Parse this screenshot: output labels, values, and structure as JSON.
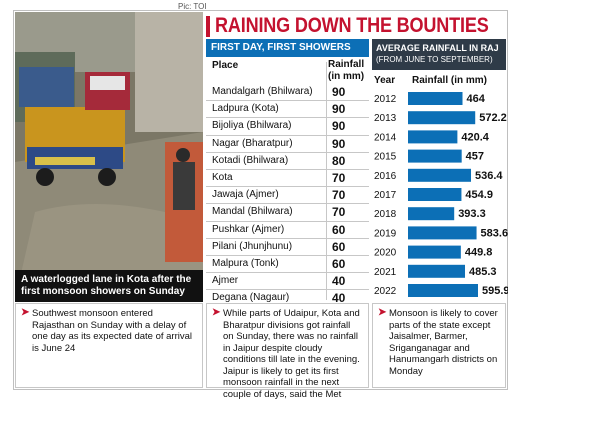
{
  "photo_credit": "Pic: TOI",
  "headline": "RAINING DOWN THE BOUNTIES",
  "photo_caption": "A waterlogged lane in Kota after the first monsoon showers on Sunday",
  "table": {
    "title": "FIRST DAY, FIRST SHOWERS",
    "col_place": "Place",
    "col_rain_1": "Rainfall",
    "col_rain_2": "(in mm)",
    "rows": [
      {
        "place": "Mandalgarh (Bhilwara)",
        "value": "90"
      },
      {
        "place": "Ladpura (Kota)",
        "value": "90"
      },
      {
        "place": "Bijoliya (Bhilwara)",
        "value": "90"
      },
      {
        "place": "Nagar (Bharatpur)",
        "value": "90"
      },
      {
        "place": "Kotadi (Bhilwara)",
        "value": "80"
      },
      {
        "place": "Kota",
        "value": "70"
      },
      {
        "place": "Jawaja (Ajmer)",
        "value": "70"
      },
      {
        "place": "Mandal (Bhilwara)",
        "value": "70"
      },
      {
        "place": "Pushkar (Ajmer)",
        "value": "60"
      },
      {
        "place": "Pilani (Jhunjhunu)",
        "value": "60"
      },
      {
        "place": "Malpura (Tonk)",
        "value": "60"
      },
      {
        "place": "Ajmer",
        "value": "40"
      },
      {
        "place": "Degana (Nagaur)",
        "value": "40"
      }
    ]
  },
  "chart_title_1": "AVERAGE RAINFALL IN RAJ",
  "chart_title_2": "(FROM JUNE TO SEPTEMBER)",
  "chart_data": {
    "type": "bar",
    "orientation": "horizontal",
    "xlabel": "Year",
    "ylabel": "Rainfall (in mm)",
    "categories": [
      "2012",
      "2013",
      "2014",
      "2015",
      "2016",
      "2017",
      "2018",
      "2019",
      "2020",
      "2021",
      "2022"
    ],
    "values": [
      464,
      572.2,
      420.4,
      457,
      536.4,
      454.9,
      393.3,
      583.6,
      449.8,
      485.3,
      595.9
    ],
    "value_labels": [
      "464",
      "572.2",
      "420.4",
      "457",
      "536.4",
      "454.9",
      "393.3",
      "583.6",
      "449.8",
      "485.3",
      "595.9"
    ],
    "bar_color": "#0c6fb6"
  },
  "notes": [
    "Southwest monsoon entered Rajasthan on Sunday with a delay of one day as its expected date of arrival is June 24",
    "While parts of Udaipur, Kota and Bharatpur divisions got rainfall on Sunday, there was no rainfall in Jaipur despite cloudy conditions till late in the evening. Jaipur is likely to get its first monsoon rainfall in the next couple of days, said the Met",
    "Monsoon is likely to cover parts of the state except Jaisalmer, Barmer, Sriganganagar and Hanumangarh districts on Monday"
  ],
  "colors": {
    "accent_red": "#c4122f",
    "table_blue": "#0c6fb6",
    "chart_header": "#2f3b48"
  }
}
